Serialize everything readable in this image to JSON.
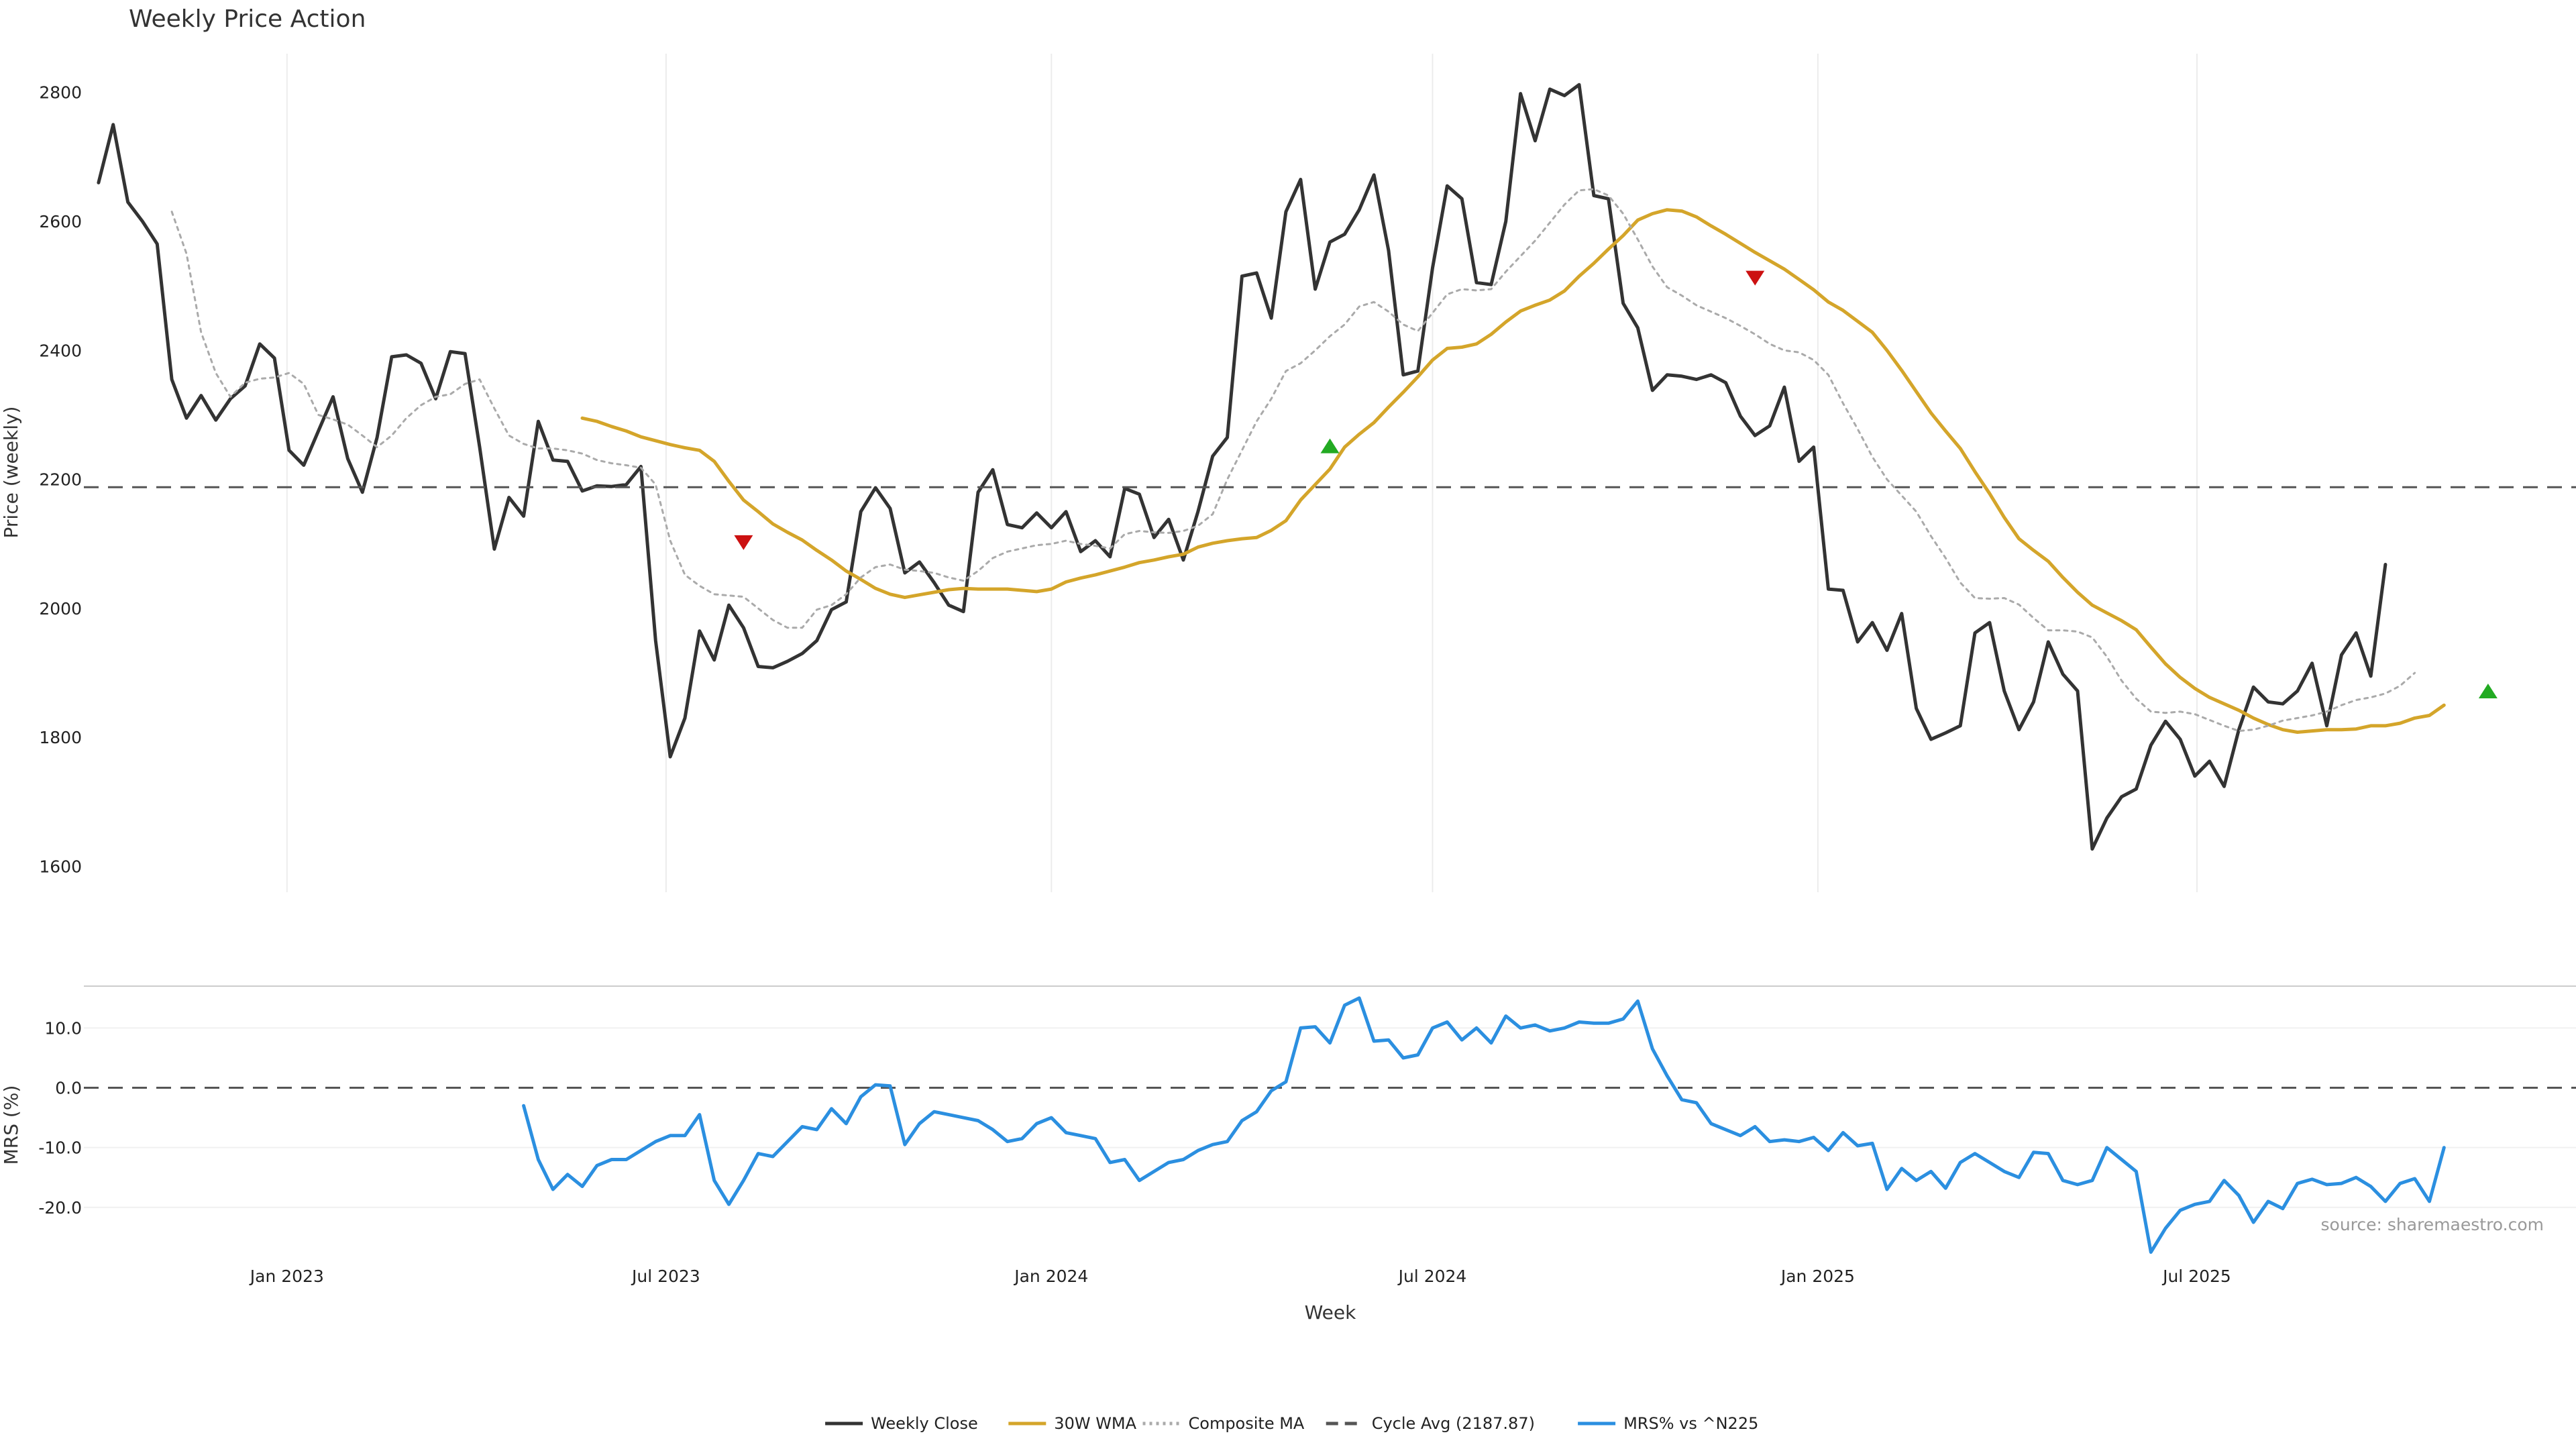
{
  "chart_data": {
    "type": "line",
    "title": "Weekly Price Action",
    "source": "source: sharemaestro.com",
    "xlabel": "Week",
    "x_start": "2022-10-03",
    "x_range": [
      "2022-09-26",
      "2025-12-29"
    ],
    "x_ticks": [
      {
        "date": "2023-01-01",
        "label": "Jan 2023"
      },
      {
        "date": "2023-07-01",
        "label": "Jul 2023"
      },
      {
        "date": "2024-01-01",
        "label": "Jan 2024"
      },
      {
        "date": "2024-07-01",
        "label": "Jul 2024"
      },
      {
        "date": "2025-01-01",
        "label": "Jan 2025"
      },
      {
        "date": "2025-07-01",
        "label": "Jul 2025"
      }
    ],
    "price_panel": {
      "ylabel": "Price (weekly)",
      "ylim": [
        1560,
        2860
      ],
      "yticks": [
        1600,
        1800,
        2000,
        2200,
        2400,
        2600,
        2800
      ],
      "grid": "x",
      "series": [
        {
          "name": "Weekly Close",
          "color": "#333333",
          "style": "solid",
          "start_index": 0,
          "values": [
            2660,
            2750,
            2630,
            2600,
            2565,
            2355,
            2295,
            2330,
            2292,
            2325,
            2345,
            2410,
            2388,
            2245,
            2222,
            2275,
            2328,
            2232,
            2180,
            2265,
            2390,
            2393,
            2380,
            2325,
            2398,
            2395,
            2250,
            2092,
            2172,
            2143,
            2290,
            2230,
            2228,
            2182,
            2190,
            2189,
            2192,
            2220,
            1950,
            1770,
            1830,
            1965,
            1920,
            2005,
            1970,
            1910,
            1908,
            1918,
            1930,
            1950,
            1998,
            2010,
            2150,
            2187,
            2155,
            2055,
            2072,
            2040,
            2005,
            1995,
            2180,
            2215,
            2130,
            2125,
            2148,
            2125,
            2150,
            2088,
            2105,
            2080,
            2186,
            2177,
            2110,
            2138,
            2075,
            2150,
            2236,
            2265,
            2515,
            2520,
            2450,
            2615,
            2665,
            2495,
            2568,
            2580,
            2618,
            2672,
            2555,
            2362,
            2368,
            2528,
            2655,
            2635,
            2505,
            2502,
            2600,
            2798,
            2725,
            2805,
            2795,
            2812,
            2640,
            2635,
            2473,
            2435,
            2338,
            2362,
            2360,
            2355,
            2362,
            2350,
            2298,
            2268,
            2283,
            2343,
            2228,
            2250,
            2030,
            2028,
            1948,
            1978,
            1935,
            1992,
            1845,
            1797,
            1807,
            1818,
            1962,
            1978,
            1872,
            1812,
            1855,
            1948,
            1898,
            1872,
            1627,
            1675,
            1708,
            1720,
            1788,
            1825,
            1797,
            1740,
            1763,
            1724,
            1812,
            1878,
            1855,
            1852,
            1872,
            1915,
            1818,
            1928,
            1962,
            1895,
            2068
          ]
        },
        {
          "name": "30W WMA",
          "color": "#D4A52A",
          "style": "solid",
          "start_index": 33,
          "values": [
            2295,
            2290,
            2282,
            2275,
            2266,
            2260,
            2254,
            2249,
            2245,
            2228,
            2197,
            2168,
            2150,
            2131,
            2118,
            2106,
            2090,
            2075,
            2058,
            2045,
            2031,
            2022,
            2017,
            2021,
            2025,
            2029,
            2031,
            2030,
            2030,
            2030,
            2028,
            2026,
            2030,
            2041,
            2047,
            2052,
            2058,
            2064,
            2071,
            2075,
            2080,
            2084,
            2095,
            2101,
            2105,
            2108,
            2110,
            2121,
            2136,
            2168,
            2192,
            2216,
            2250,
            2270,
            2288,
            2312,
            2335,
            2359,
            2385,
            2403,
            2405,
            2410,
            2425,
            2444,
            2461,
            2470,
            2478,
            2492,
            2515,
            2535,
            2557,
            2578,
            2602,
            2612,
            2618,
            2616,
            2607,
            2593,
            2580,
            2566,
            2552,
            2539,
            2526,
            2510,
            2494,
            2475,
            2462,
            2445,
            2428,
            2400,
            2369,
            2336,
            2303,
            2275,
            2248,
            2212,
            2178,
            2141,
            2108,
            2090,
            2073,
            2048,
            2025,
            2005,
            1993,
            1981,
            1967,
            1940,
            1914,
            1893,
            1876,
            1862,
            1852,
            1842,
            1830,
            1820,
            1812,
            1808,
            1810,
            1812,
            1812,
            1813,
            1818,
            1818,
            1822,
            1830,
            1834,
            1850
          ]
        },
        {
          "name": "Composite MA",
          "color": "#AAAAAA",
          "style": "dotted",
          "start_index": 5,
          "values": [
            2615,
            2550,
            2428,
            2365,
            2328,
            2350,
            2356,
            2358,
            2365,
            2348,
            2300,
            2293,
            2285,
            2268,
            2250,
            2268,
            2295,
            2315,
            2328,
            2332,
            2348,
            2355,
            2310,
            2268,
            2255,
            2248,
            2248,
            2245,
            2240,
            2230,
            2225,
            2222,
            2218,
            2192,
            2105,
            2052,
            2035,
            2022,
            2020,
            2018,
            2000,
            1982,
            1970,
            1970,
            1998,
            2005,
            2022,
            2048,
            2064,
            2068,
            2060,
            2058,
            2055,
            2048,
            2043,
            2058,
            2078,
            2088,
            2093,
            2098,
            2100,
            2105,
            2100,
            2097,
            2093,
            2115,
            2120,
            2118,
            2117,
            2120,
            2128,
            2146,
            2200,
            2245,
            2290,
            2325,
            2368,
            2380,
            2400,
            2422,
            2440,
            2468,
            2475,
            2460,
            2440,
            2430,
            2458,
            2487,
            2495,
            2493,
            2495,
            2522,
            2546,
            2570,
            2598,
            2626,
            2648,
            2650,
            2640,
            2612,
            2572,
            2530,
            2498,
            2485,
            2470,
            2460,
            2450,
            2438,
            2425,
            2410,
            2400,
            2397,
            2385,
            2362,
            2318,
            2278,
            2235,
            2200,
            2175,
            2150,
            2112,
            2078,
            2040,
            2016,
            2015,
            2016,
            2006,
            1985,
            1966,
            1966,
            1964,
            1955,
            1925,
            1888,
            1860,
            1840,
            1838,
            1840,
            1836,
            1827,
            1818,
            1810,
            1812,
            1818,
            1826,
            1830,
            1834,
            1840,
            1850,
            1858,
            1862,
            1868,
            1880,
            1900
          ]
        },
        {
          "name": "Cycle Avg (2187.87)",
          "color": "#555555",
          "style": "dashed",
          "hline": 2187.87
        }
      ],
      "markers": [
        {
          "date": "2023-08-07",
          "value": 2102,
          "direction": "down",
          "color": "#CC1111"
        },
        {
          "date": "2024-05-13",
          "value": 2252,
          "direction": "up",
          "color": "#22AA22"
        },
        {
          "date": "2024-12-02",
          "value": 2512,
          "direction": "down",
          "color": "#CC1111"
        },
        {
          "date": "2025-11-17",
          "value": 1872,
          "direction": "up",
          "color": "#22AA22"
        }
      ]
    },
    "mrs_panel": {
      "ylabel": "MRS (%)",
      "ylim": [
        -29,
        17
      ],
      "yticks": [
        10.0,
        0.0,
        -10.0,
        -20.0
      ],
      "ytick_labels": [
        "10.0",
        "0.0",
        "-10.0",
        "-20.0"
      ],
      "zero_line": 0,
      "series": [
        {
          "name": "MRS% vs ^N225",
          "color": "#2B8FE0",
          "style": "solid",
          "start_index": 29,
          "values": [
            -3,
            -12,
            -17,
            -14.5,
            -16.5,
            -13,
            -12,
            -12,
            -10.5,
            -9,
            -8,
            -8,
            -4.5,
            -15.5,
            -19.5,
            -15.5,
            -11,
            -11.5,
            -9,
            -6.5,
            -7,
            -3.5,
            -6,
            -1.5,
            0.5,
            0.3,
            -9.5,
            -6,
            -4,
            -4.5,
            -5,
            -5.5,
            -7,
            -9,
            -8.5,
            -6,
            -5,
            -7.5,
            -8,
            -8.5,
            -12.5,
            -12,
            -15.5,
            -14,
            -12.5,
            -12,
            -10.5,
            -9.5,
            -9,
            -5.5,
            -4,
            -0.5,
            1,
            10,
            10.2,
            7.5,
            13.8,
            15,
            7.8,
            8,
            5,
            5.5,
            10,
            11,
            8,
            10,
            7.5,
            12,
            10,
            10.5,
            9.5,
            10,
            11,
            10.8,
            10.8,
            11.5,
            14.5,
            6.5,
            2,
            -2,
            -2.5,
            -6,
            -7,
            -8,
            -6.5,
            -9,
            -8.7,
            -9,
            -8.3,
            -10.5,
            -7.5,
            -9.7,
            -9.3,
            -17,
            -13.5,
            -15.5,
            -14,
            -16.8,
            -12.5,
            -11,
            -12.5,
            -14,
            -15,
            -10.8,
            -11,
            -15.5,
            -16.2,
            -15.5,
            -10,
            -12,
            -14,
            -27.5,
            -23.5,
            -20.5,
            -19.5,
            -19,
            -15.5,
            -18,
            -22.5,
            -19,
            -20.2,
            -16,
            -15.3,
            -16.2,
            -16,
            -15,
            -16.5,
            -19,
            -16,
            -15.2,
            -19,
            -10
          ]
        }
      ]
    },
    "legend": {
      "placement": "bottom-center",
      "entries": [
        {
          "label": "Weekly Close",
          "color": "#333333",
          "style": "solid"
        },
        {
          "label": "30W WMA",
          "color": "#D4A52A",
          "style": "solid"
        },
        {
          "label": "Composite MA",
          "color": "#AAAAAA",
          "style": "dotted"
        },
        {
          "label": "Cycle Avg (2187.87)",
          "color": "#555555",
          "style": "dashed"
        },
        {
          "label": "MRS% vs ^N225",
          "color": "#2B8FE0",
          "style": "solid"
        }
      ]
    }
  }
}
